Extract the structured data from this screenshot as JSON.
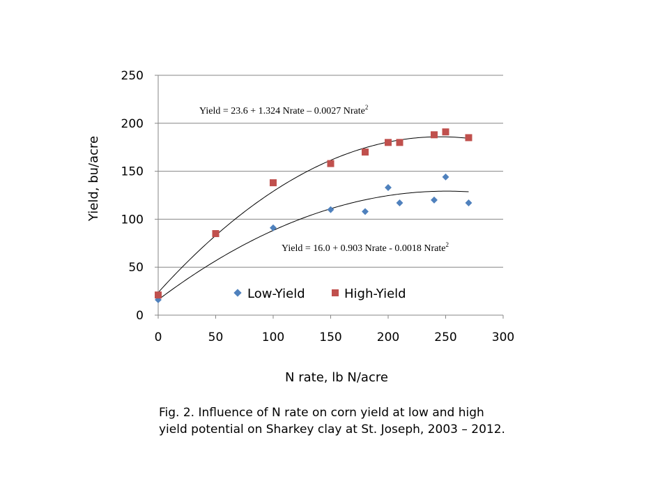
{
  "chart_data": {
    "type": "scatter",
    "xlabel": "N rate, lb N/acre",
    "ylabel": "Yield, bu/acre",
    "xlim": [
      0,
      300
    ],
    "ylim": [
      0,
      250
    ],
    "xticks": [
      0,
      50,
      100,
      150,
      200,
      250,
      300
    ],
    "yticks": [
      0,
      50,
      100,
      150,
      200,
      250
    ],
    "grid": "horizontal",
    "legend_position": "bottom-center-inside",
    "series": [
      {
        "name": "Low-Yield",
        "marker": "diamond",
        "color": "#4f81bd",
        "points": [
          [
            0,
            16
          ],
          [
            100,
            91
          ],
          [
            150,
            110
          ],
          [
            180,
            108
          ],
          [
            200,
            133
          ],
          [
            210,
            117
          ],
          [
            240,
            120
          ],
          [
            250,
            144
          ],
          [
            270,
            117
          ]
        ],
        "trendline": {
          "label": "Yield = 16.0 + 0.903 Nrate - 0.0018 Nrate",
          "superscript": "2",
          "a": 16.0,
          "b": 0.903,
          "c": -0.0018,
          "x_range": [
            0,
            270
          ]
        }
      },
      {
        "name": "High-Yield",
        "marker": "square",
        "color": "#c0504d",
        "points": [
          [
            0,
            21
          ],
          [
            50,
            85
          ],
          [
            100,
            138
          ],
          [
            150,
            158
          ],
          [
            180,
            170
          ],
          [
            200,
            180
          ],
          [
            210,
            180
          ],
          [
            240,
            188
          ],
          [
            250,
            191
          ],
          [
            270,
            185
          ]
        ],
        "trendline": {
          "label": "Yield = 23.6 + 1.324 Nrate – 0.0027 Nrate",
          "superscript": "2",
          "a": 23.6,
          "b": 1.324,
          "c": -0.0027,
          "x_range": [
            0,
            270
          ]
        }
      }
    ]
  },
  "caption": {
    "line1": "Fig. 2. Influence of N rate on corn yield at low and high",
    "line2": "yield potential on Sharkey clay at St. Joseph, 2003 – 2012."
  }
}
